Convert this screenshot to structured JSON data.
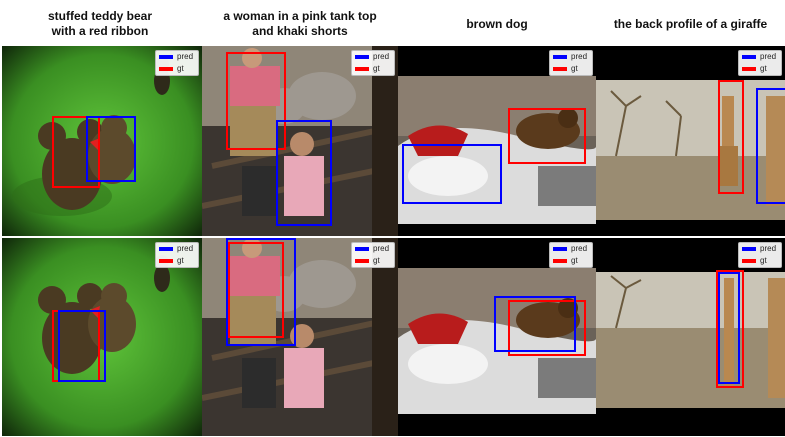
{
  "legend": {
    "pred_label": "pred",
    "gt_label": "gt",
    "pred_color": "#0000ff",
    "gt_color": "#ff0000"
  },
  "columns": [
    {
      "title": "stuffed teddy bear\nwith a red ribbon"
    },
    {
      "title": "a woman in a pink tank top\nand khaki shorts"
    },
    {
      "title": "brown dog"
    },
    {
      "title": "the back profile of a giraffe"
    }
  ]
}
